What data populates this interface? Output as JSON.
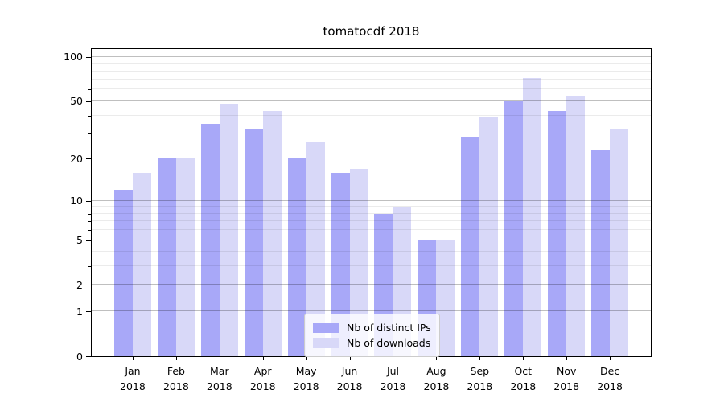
{
  "title": "tomatocdf 2018",
  "chart_data": {
    "type": "bar",
    "title": "tomatocdf 2018",
    "year": "2018",
    "categories": [
      "Jan",
      "Feb",
      "Mar",
      "Apr",
      "May",
      "Jun",
      "Jul",
      "Aug",
      "Sep",
      "Oct",
      "Nov",
      "Dec"
    ],
    "series": [
      {
        "name": "Nb of distinct IPs",
        "color": "#a8a8f8",
        "values": [
          12,
          20,
          35,
          32,
          20,
          16,
          8,
          5,
          28,
          50,
          43,
          23
        ]
      },
      {
        "name": "Nb of downloads",
        "color": "#d8d8f8",
        "values": [
          16,
          20,
          48,
          43,
          26,
          17,
          9,
          5,
          39,
          72,
          54,
          32
        ]
      }
    ],
    "yscale": "log1p",
    "ylim": [
      0,
      113
    ],
    "y_major_ticks": [
      0,
      1,
      2,
      5,
      10,
      20,
      50,
      100
    ],
    "y_minor_ticks": [
      3,
      4,
      6,
      7,
      8,
      9,
      30,
      40,
      60,
      70,
      80,
      90
    ],
    "grid": true,
    "grid_over_bars": true,
    "legend": {
      "position": "lower center",
      "items": [
        "Nb of distinct IPs",
        "Nb of downloads"
      ]
    }
  }
}
